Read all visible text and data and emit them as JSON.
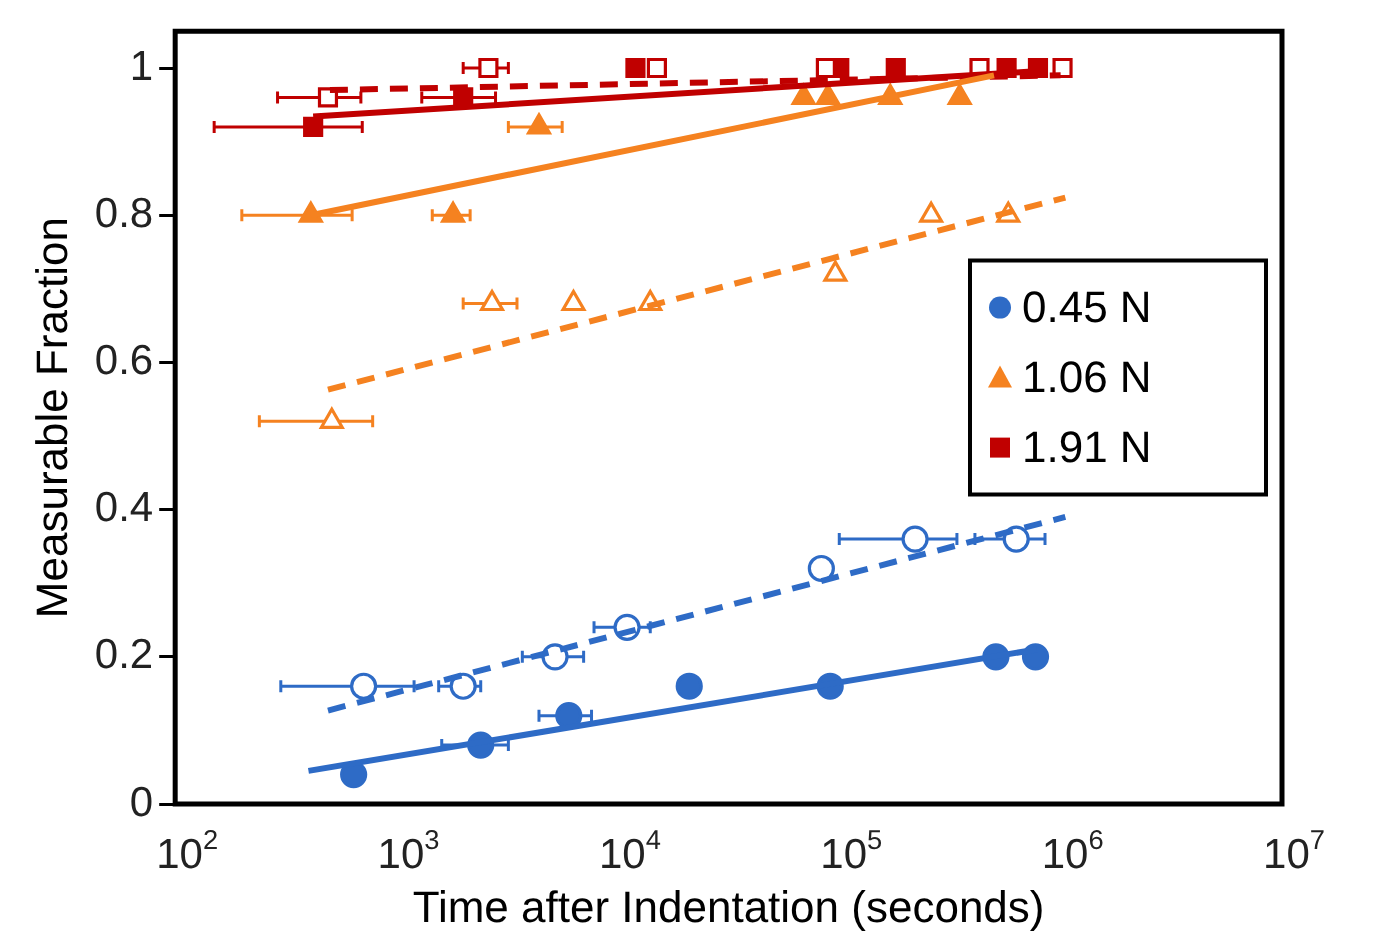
{
  "chart_data": {
    "type": "scatter",
    "xlabel": "Time after Indentation (seconds)",
    "ylabel": "Measurable Fraction",
    "log": "x",
    "xlim": [
      100,
      10000000
    ],
    "xticks": [
      {
        "value": 100,
        "label": "10$^{2}$"
      },
      {
        "value": 1000,
        "label": "10$^{3}$"
      },
      {
        "value": 10000,
        "label": "10$^{4}$"
      },
      {
        "value": 100000,
        "label": "10$^{5}$"
      },
      {
        "value": 1000000,
        "label": "10$^{6}$"
      },
      {
        "value": 10000000,
        "label": "10$^{7}$"
      }
    ],
    "ylim": [
      0,
      1.05
    ],
    "yticks": [
      0,
      0.2,
      0.4,
      0.6,
      0.8,
      1
    ],
    "grid": false,
    "legend": "right",
    "series": [
      {
        "name": "0.45 N",
        "marker": "circle",
        "color": "#2e6bc6",
        "x": [
          640,
          2400,
          6000,
          21000,
          91000,
          510000,
          770000
        ],
        "values": [
          0.04,
          0.08,
          0.12,
          0.16,
          0.16,
          0.2,
          0.2
        ],
        "xerrors": [
          null,
          [
            1600,
            3200
          ],
          [
            4400,
            7600
          ],
          null,
          null,
          null,
          null
        ]
      },
      {
        "marker": "circle",
        "color": "#2e6bc6",
        "x": [
          710,
          2000,
          5200,
          11000,
          83000,
          220000,
          630000
        ],
        "values": [
          0.16,
          0.16,
          0.2,
          0.24,
          0.32,
          0.36,
          0.36
        ],
        "xerrors": [
          [
            300,
            1200
          ],
          [
            1550,
            2400
          ],
          [
            3700,
            7000
          ],
          [
            7800,
            14000
          ],
          null,
          [
            100000,
            340000
          ],
          [
            410000,
            850000
          ]
        ]
      },
      {
        "name": "1.06 N",
        "marker": "triangle",
        "color": "#f58220",
        "x": [
          410,
          1800,
          4400,
          69000,
          89000,
          170000,
          350000
        ],
        "values": [
          0.8,
          0.8,
          0.92,
          0.96,
          0.96,
          0.96,
          0.96
        ],
        "xerrors": [
          [
            200,
            630
          ],
          [
            1450,
            2150
          ],
          [
            3200,
            5600
          ],
          null,
          null,
          null,
          null
        ]
      },
      {
        "marker": "triangle",
        "color": "#f58220",
        "x": [
          510,
          2700,
          6300,
          14000,
          96000,
          260000,
          580000
        ],
        "values": [
          0.52,
          0.68,
          0.68,
          0.68,
          0.72,
          0.8,
          0.8
        ],
        "xerrors": [
          [
            240,
            780
          ],
          [
            2000,
            3500
          ],
          null,
          null,
          null,
          null,
          null
        ]
      },
      {
        "name": "1.91 N",
        "marker": "square",
        "color": "#c00000",
        "x": [
          420,
          2000,
          12000,
          100000,
          180000,
          570000,
          790000
        ],
        "values": [
          0.92,
          0.96,
          1,
          1,
          1,
          1,
          1
        ],
        "xerrors": [
          [
            150,
            700
          ],
          [
            1300,
            2800
          ],
          null,
          null,
          null,
          null,
          null
        ]
      },
      {
        "marker": "square",
        "color": "#c00000",
        "x": [
          490,
          2600,
          15000,
          87000,
          430000,
          1020000
        ],
        "values": [
          0.96,
          1,
          1,
          1,
          1,
          1
        ],
        "xerrors": [
          [
            290,
            690
          ],
          [
            2000,
            3200
          ],
          null,
          null,
          null,
          null
        ]
      },
      {
        "type": "line",
        "line_style": "solid",
        "color": "#2e6bc6",
        "x": [
          400,
          780000
        ],
        "values": [
          0.045,
          0.21
        ]
      },
      {
        "type": "line",
        "line_style": "dashed",
        "color": "#2e6bc6",
        "x": [
          490,
          1050000
        ],
        "values": [
          0.127,
          0.39
        ]
      },
      {
        "type": "line",
        "line_style": "solid",
        "color": "#f58220",
        "x": [
          410,
          500000
        ],
        "values": [
          0.8,
          0.99
        ]
      },
      {
        "type": "line",
        "line_style": "dashed",
        "color": "#f58220",
        "x": [
          490,
          1050000
        ],
        "values": [
          0.563,
          0.824
        ]
      },
      {
        "type": "line",
        "line_style": "solid",
        "color": "#c00000",
        "x": [
          420,
          800000
        ],
        "values": [
          0.934,
          0.996
        ]
      },
      {
        "type": "line",
        "line_style": "dashed",
        "color": "#c00000",
        "x": [
          500,
          1000000
        ],
        "values": [
          0.97,
          0.99
        ]
      }
    ]
  }
}
